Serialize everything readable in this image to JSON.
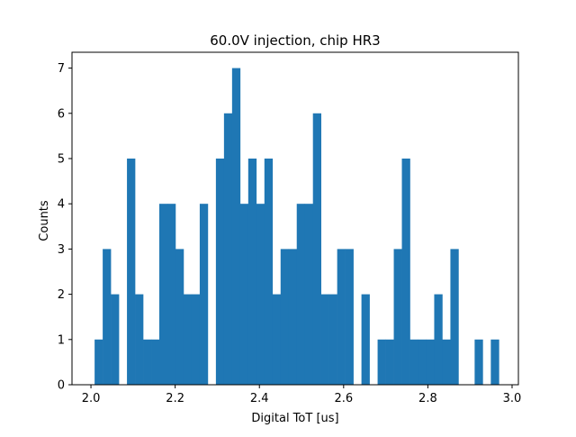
{
  "chart_data": {
    "type": "bar",
    "title": "60.0V injection, chip HR3",
    "xlabel": "Digital ToT [us]",
    "ylabel": "Counts",
    "xlim": [
      1.955,
      3.015
    ],
    "ylim": [
      0,
      7.35
    ],
    "bin_width": 0.0192,
    "bin_starts": [
      2.0087,
      2.0279,
      2.0471,
      2.0663,
      2.0855,
      2.1047,
      2.1239,
      2.1431,
      2.1623,
      2.1815,
      2.2007,
      2.2199,
      2.2391,
      2.2583,
      2.2775,
      2.2967,
      2.3159,
      2.3351,
      2.3543,
      2.3735,
      2.3927,
      2.4119,
      2.4311,
      2.4503,
      2.4695,
      2.4887,
      2.5079,
      2.5271,
      2.5463,
      2.5655,
      2.5847,
      2.6039,
      2.6231,
      2.6423,
      2.6615,
      2.6807,
      2.6999,
      2.7191,
      2.7383,
      2.7575,
      2.7767,
      2.7959,
      2.8151,
      2.8343,
      2.8535,
      2.8727,
      2.8919,
      2.9111,
      2.9303,
      2.9495
    ],
    "counts": [
      1,
      3,
      2,
      0,
      5,
      2,
      1,
      1,
      4,
      4,
      3,
      2,
      2,
      4,
      0,
      5,
      6,
      7,
      4,
      5,
      4,
      5,
      2,
      3,
      3,
      4,
      4,
      6,
      2,
      2,
      3,
      3,
      0,
      2,
      0,
      1,
      1,
      3,
      5,
      1,
      1,
      1,
      2,
      1,
      3,
      0,
      0,
      1,
      0,
      1
    ],
    "xticks": [
      2.0,
      2.2,
      2.4,
      2.6,
      2.8,
      3.0
    ],
    "xtick_labels": [
      "2.0",
      "2.2",
      "2.4",
      "2.6",
      "2.8",
      "3.0"
    ],
    "yticks": [
      0,
      1,
      2,
      3,
      4,
      5,
      6,
      7
    ],
    "ytick_labels": [
      "0",
      "1",
      "2",
      "3",
      "4",
      "5",
      "6",
      "7"
    ],
    "bar_color": "#1f77b4",
    "grid": false,
    "legend": "none"
  }
}
